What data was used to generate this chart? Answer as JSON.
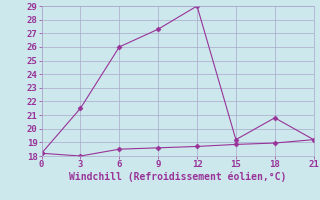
{
  "xlabel": "Windchill (Refroidissement éolien,°C)",
  "x_line1": [
    0,
    3,
    6,
    9,
    12,
    15,
    18,
    21
  ],
  "y_line1": [
    18.2,
    21.5,
    26.0,
    27.3,
    29.0,
    19.2,
    20.8,
    19.2
  ],
  "x_line2": [
    0,
    3,
    6,
    9,
    12,
    15,
    18,
    21
  ],
  "y_line2": [
    18.2,
    18.0,
    18.5,
    18.6,
    18.7,
    18.85,
    18.95,
    19.2
  ],
  "line_color": "#993399",
  "bg_color": "#cce8ec",
  "grid_color": "#aaaacc",
  "text_color": "#993399",
  "ylim": [
    18,
    29
  ],
  "xlim": [
    0,
    21
  ],
  "yticks": [
    18,
    19,
    20,
    21,
    22,
    23,
    24,
    25,
    26,
    27,
    28,
    29
  ],
  "xticks": [
    0,
    3,
    6,
    9,
    12,
    15,
    18,
    21
  ],
  "marker": "D",
  "markersize": 2.5,
  "linewidth": 0.8,
  "tick_fontsize": 6.5,
  "xlabel_fontsize": 7
}
